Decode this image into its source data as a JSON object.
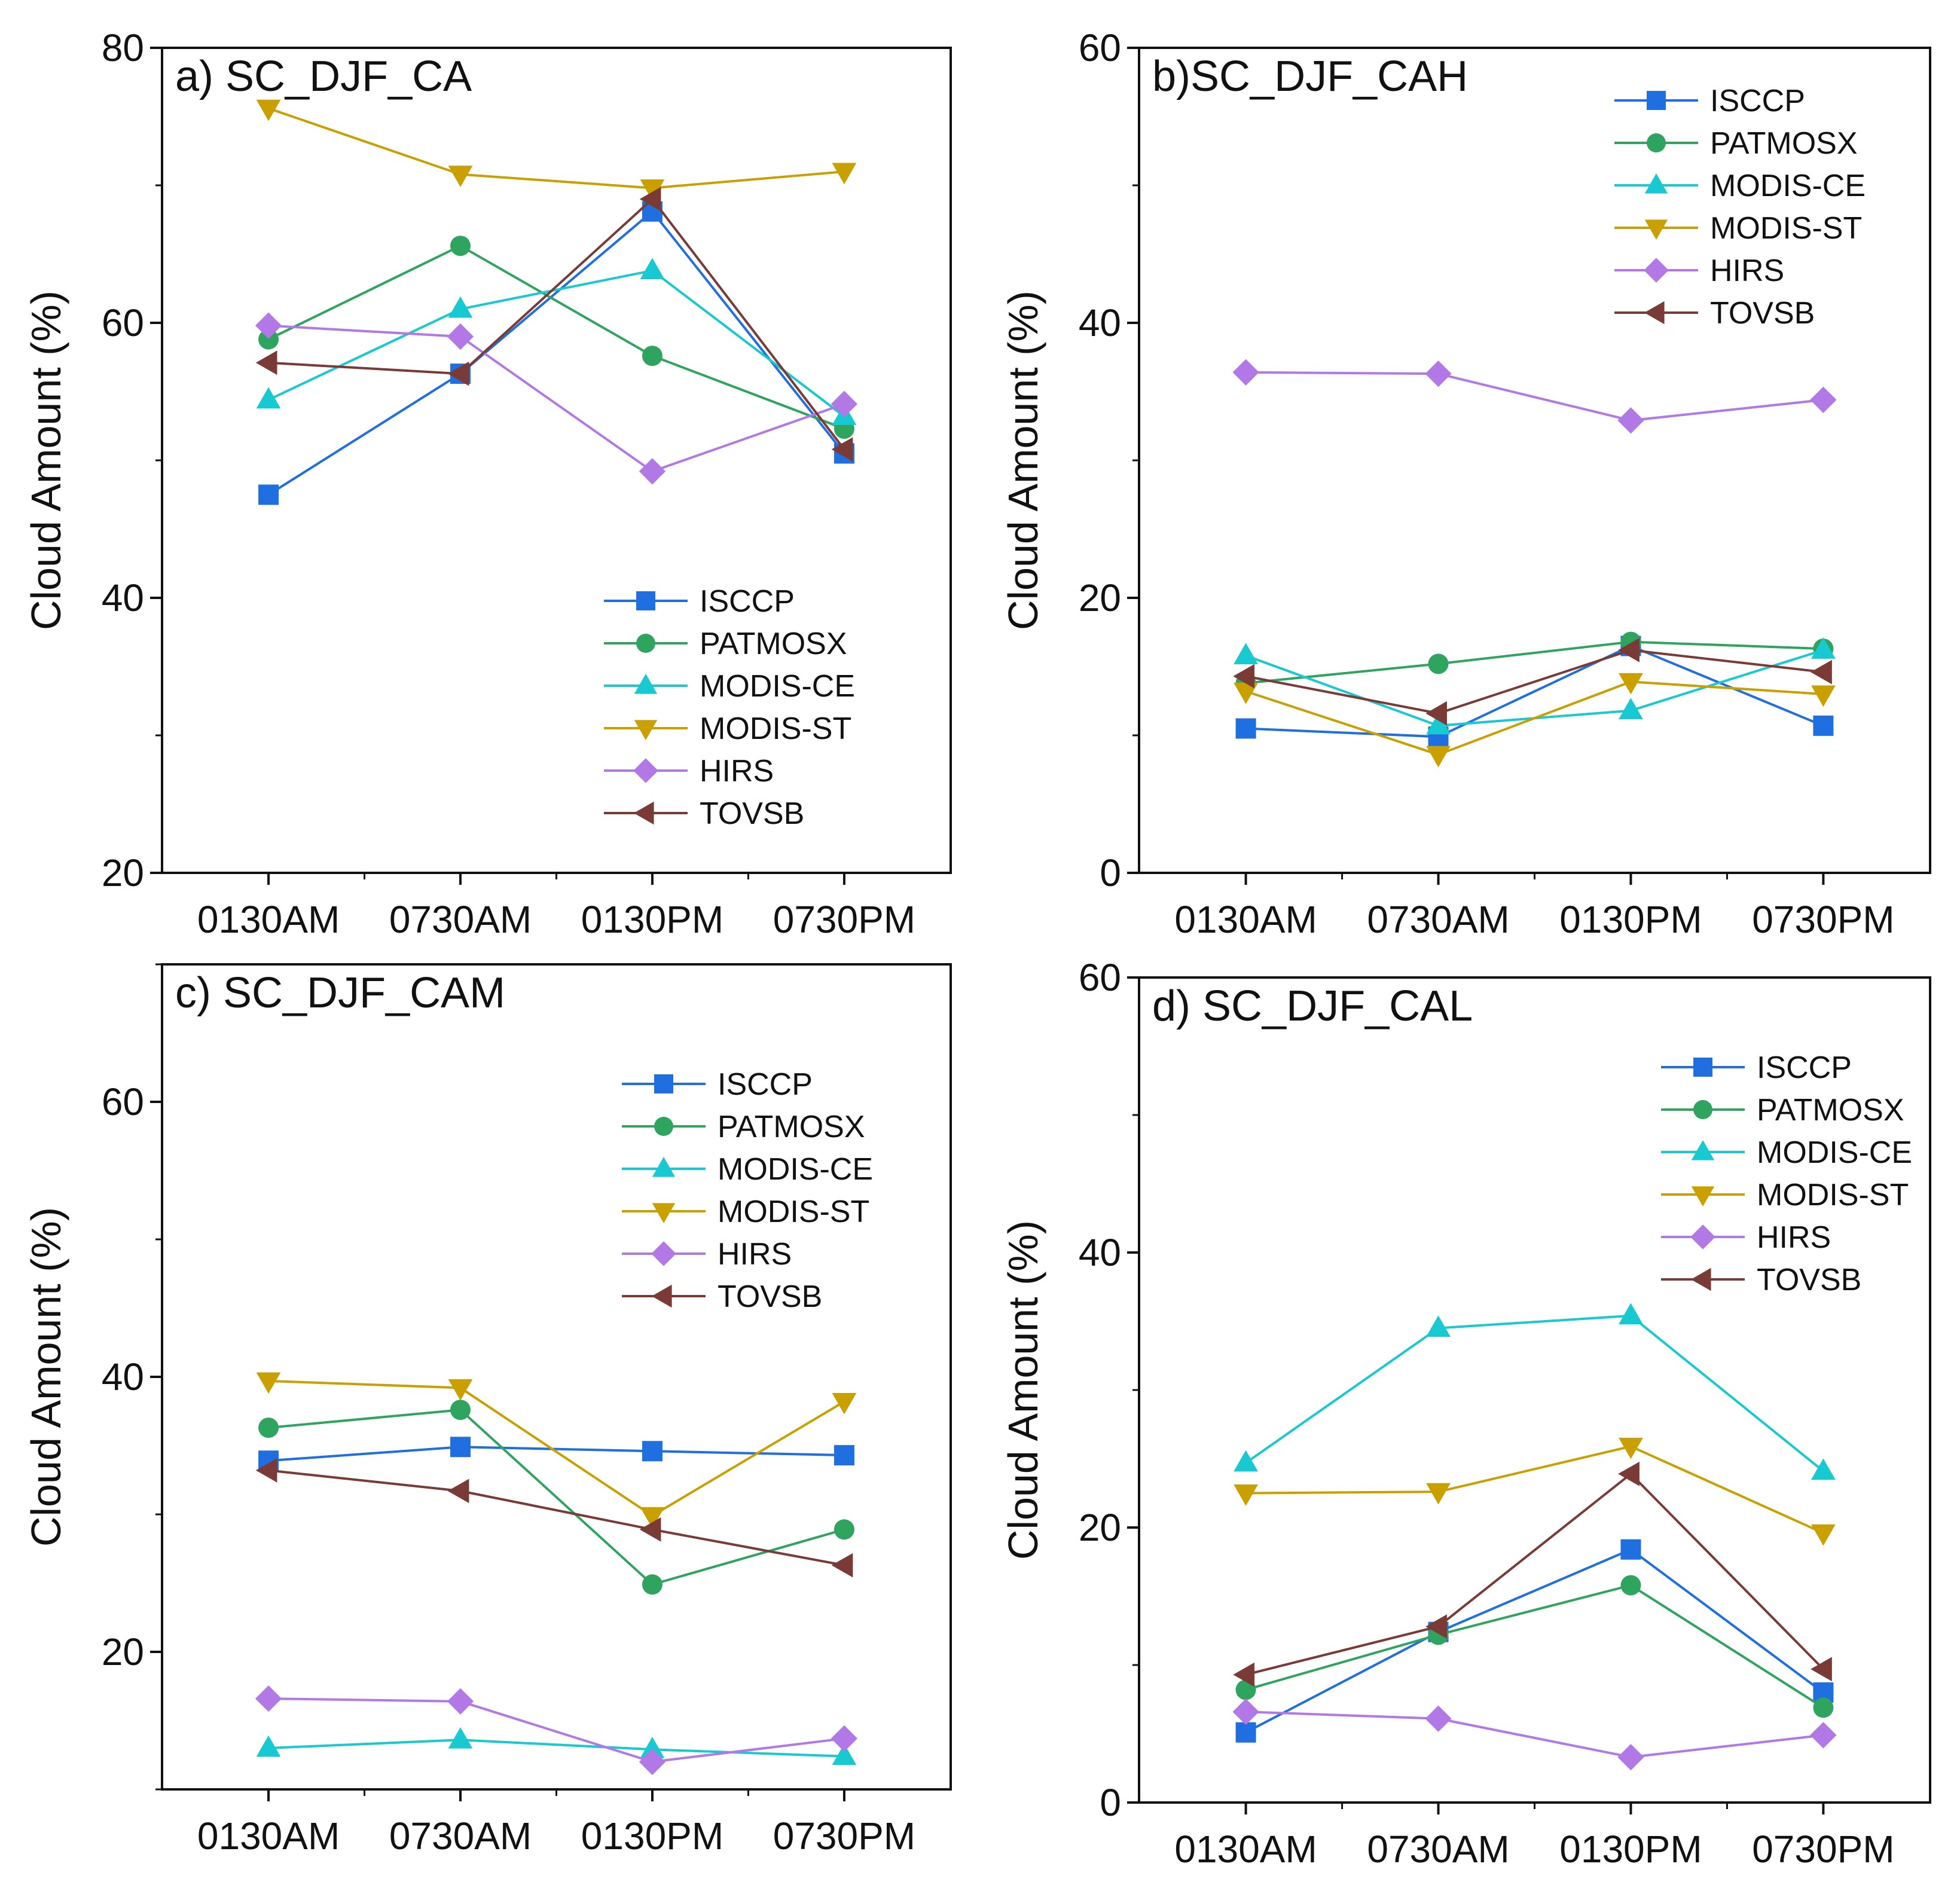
{
  "figure": {
    "colors": {
      "ISCCP": "#1f6fe0",
      "PATMOSX": "#2fa45f",
      "MODIS-CE": "#18c9d1",
      "MODIS-ST": "#c9a000",
      "HIRS": "#b278e6",
      "TOVSB": "#7a3a35"
    },
    "markers": {
      "ISCCP": "square",
      "PATMOSX": "circle",
      "MODIS-CE": "triangle-up",
      "MODIS-ST": "triangle-down",
      "HIRS": "diamond",
      "TOVSB": "triangle-left"
    }
  },
  "chart_data": [
    {
      "id": "a",
      "type": "line",
      "title": "a) SC_DJF_CA",
      "xlabel": "",
      "ylabel": "Cloud Amount (%)",
      "categories": [
        "0130AM",
        "0730AM",
        "0130PM",
        "0730PM"
      ],
      "ylim": [
        20,
        80
      ],
      "yticks": [
        20,
        40,
        60,
        80
      ],
      "legend_position": "bottom-right",
      "series": [
        {
          "name": "ISCCP",
          "values": [
            47.5,
            56.3,
            68.1,
            50.5
          ]
        },
        {
          "name": "PATMOSX",
          "values": [
            58.8,
            65.6,
            57.6,
            52.3
          ]
        },
        {
          "name": "MODIS-CE",
          "values": [
            54.4,
            61.0,
            63.8,
            53.2
          ]
        },
        {
          "name": "MODIS-ST",
          "values": [
            75.6,
            70.8,
            69.8,
            71.0
          ]
        },
        {
          "name": "HIRS",
          "values": [
            59.8,
            59.0,
            49.2,
            54.1
          ]
        },
        {
          "name": "TOVSB",
          "values": [
            57.1,
            56.3,
            69.0,
            50.8
          ]
        }
      ]
    },
    {
      "id": "b",
      "type": "line",
      "title": "b)SC_DJF_CAH",
      "xlabel": "",
      "ylabel": "Cloud Amount (%)",
      "categories": [
        "0130AM",
        "0730AM",
        "0130PM",
        "0730PM"
      ],
      "ylim": [
        0,
        60
      ],
      "yticks": [
        0,
        20,
        40,
        60
      ],
      "legend_position": "top-right",
      "series": [
        {
          "name": "ISCCP",
          "values": [
            10.5,
            9.9,
            16.5,
            10.7
          ]
        },
        {
          "name": "PATMOSX",
          "values": [
            13.8,
            15.2,
            16.8,
            16.3
          ]
        },
        {
          "name": "MODIS-CE",
          "values": [
            15.8,
            10.7,
            11.8,
            16.2
          ]
        },
        {
          "name": "MODIS-ST",
          "values": [
            13.2,
            8.6,
            13.9,
            13.0
          ]
        },
        {
          "name": "HIRS",
          "values": [
            36.4,
            36.3,
            32.9,
            34.4
          ]
        },
        {
          "name": "TOVSB",
          "values": [
            14.3,
            11.6,
            16.2,
            14.6
          ]
        }
      ]
    },
    {
      "id": "c",
      "type": "line",
      "title": "c) SC_DJF_CAM",
      "xlabel": "",
      "ylabel": "Cloud Amount (%)",
      "categories": [
        "0130AM",
        "0730AM",
        "0130PM",
        "0730PM"
      ],
      "ylim": [
        10,
        70
      ],
      "yticks": [
        20,
        40,
        60
      ],
      "legend_position": "top-right",
      "series": [
        {
          "name": "ISCCP",
          "values": [
            33.9,
            34.9,
            34.6,
            34.3
          ]
        },
        {
          "name": "PATMOSX",
          "values": [
            36.3,
            37.6,
            24.9,
            28.9
          ]
        },
        {
          "name": "MODIS-CE",
          "values": [
            13.0,
            13.6,
            12.9,
            12.4
          ]
        },
        {
          "name": "MODIS-ST",
          "values": [
            39.7,
            39.2,
            29.9,
            38.2
          ]
        },
        {
          "name": "HIRS",
          "values": [
            16.6,
            16.4,
            12.0,
            13.7
          ]
        },
        {
          "name": "TOVSB",
          "values": [
            33.2,
            31.7,
            28.9,
            26.3
          ]
        }
      ]
    },
    {
      "id": "d",
      "type": "line",
      "title": "d) SC_DJF_CAL",
      "xlabel": "",
      "ylabel": "Cloud Amount (%)",
      "categories": [
        "0130AM",
        "0730AM",
        "0130PM",
        "0730PM"
      ],
      "ylim": [
        0,
        60
      ],
      "yticks": [
        0,
        20,
        40,
        60
      ],
      "legend_position": "top-right",
      "series": [
        {
          "name": "ISCCP",
          "values": [
            5.1,
            12.4,
            18.4,
            8.0
          ]
        },
        {
          "name": "PATMOSX",
          "values": [
            8.2,
            12.2,
            15.8,
            6.9
          ]
        },
        {
          "name": "MODIS-CE",
          "values": [
            24.7,
            34.5,
            35.4,
            24.1
          ]
        },
        {
          "name": "MODIS-ST",
          "values": [
            22.5,
            22.6,
            25.9,
            19.6
          ]
        },
        {
          "name": "HIRS",
          "values": [
            6.6,
            6.1,
            3.3,
            4.9
          ]
        },
        {
          "name": "TOVSB",
          "values": [
            9.3,
            12.8,
            23.9,
            9.7
          ]
        }
      ]
    }
  ]
}
